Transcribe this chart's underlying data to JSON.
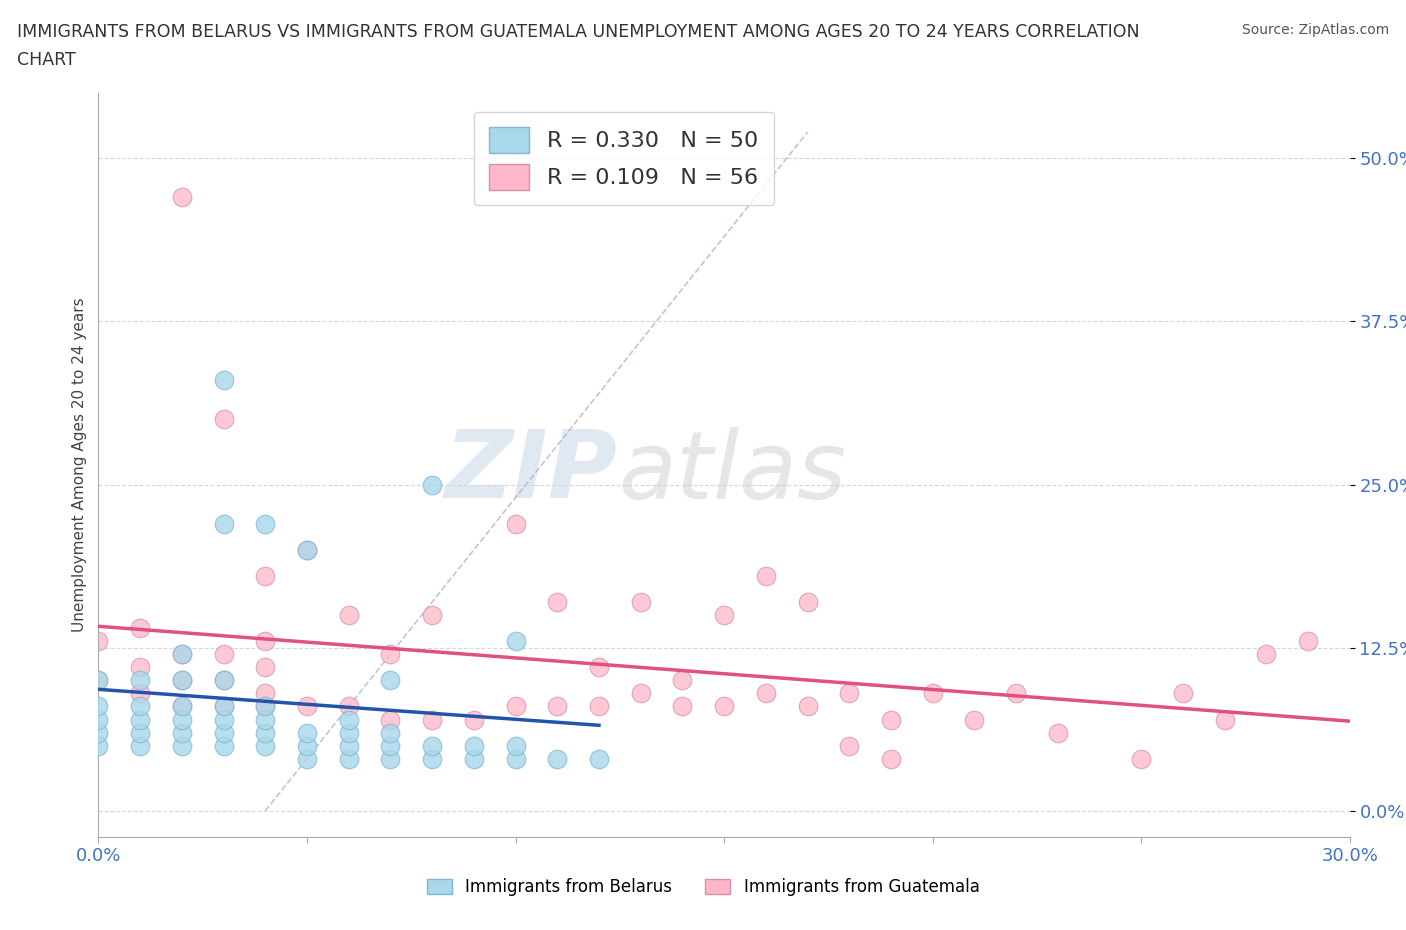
{
  "title_line1": "IMMIGRANTS FROM BELARUS VS IMMIGRANTS FROM GUATEMALA UNEMPLOYMENT AMONG AGES 20 TO 24 YEARS CORRELATION",
  "title_line2": "CHART",
  "source": "Source: ZipAtlas.com",
  "ylabel": "Unemployment Among Ages 20 to 24 years",
  "R_belarus": 0.33,
  "N_belarus": 50,
  "R_guatemala": 0.109,
  "N_guatemala": 56,
  "color_belarus": "#a8d8ea",
  "color_guatemala": "#ffb6c8",
  "trendline_color_belarus": "#2255aa",
  "trendline_color_guatemala": "#e05080",
  "background_color": "#ffffff",
  "watermark_zip": "ZIP",
  "watermark_atlas": "atlas",
  "xlim": [
    0.0,
    0.3
  ],
  "ylim": [
    -0.02,
    0.55
  ],
  "ytick_vals": [
    0.0,
    0.125,
    0.25,
    0.375,
    0.5
  ],
  "ytick_labels": [
    "0.0%",
    "12.5%",
    "25.0%",
    "37.5%",
    "50.0%"
  ],
  "xtick_vals": [
    0.0,
    0.05,
    0.1,
    0.15,
    0.2,
    0.25,
    0.3
  ],
  "xtick_labels": [
    "0.0%",
    "",
    "",
    "",
    "",
    "",
    "30.0%"
  ],
  "belarus_x": [
    0.0,
    0.0,
    0.0,
    0.0,
    0.0,
    0.01,
    0.01,
    0.01,
    0.01,
    0.01,
    0.02,
    0.02,
    0.02,
    0.02,
    0.02,
    0.02,
    0.03,
    0.03,
    0.03,
    0.03,
    0.03,
    0.03,
    0.03,
    0.04,
    0.04,
    0.04,
    0.04,
    0.04,
    0.05,
    0.05,
    0.05,
    0.05,
    0.06,
    0.06,
    0.06,
    0.06,
    0.07,
    0.07,
    0.07,
    0.07,
    0.08,
    0.08,
    0.08,
    0.09,
    0.09,
    0.1,
    0.1,
    0.1,
    0.11,
    0.12
  ],
  "belarus_y": [
    0.05,
    0.06,
    0.07,
    0.08,
    0.1,
    0.05,
    0.06,
    0.07,
    0.08,
    0.1,
    0.05,
    0.06,
    0.07,
    0.08,
    0.1,
    0.12,
    0.05,
    0.06,
    0.07,
    0.08,
    0.1,
    0.22,
    0.33,
    0.05,
    0.06,
    0.07,
    0.08,
    0.22,
    0.04,
    0.05,
    0.06,
    0.2,
    0.04,
    0.05,
    0.06,
    0.07,
    0.04,
    0.05,
    0.06,
    0.1,
    0.04,
    0.05,
    0.25,
    0.04,
    0.05,
    0.04,
    0.05,
    0.13,
    0.04,
    0.04
  ],
  "guatemala_x": [
    0.0,
    0.0,
    0.01,
    0.01,
    0.01,
    0.02,
    0.02,
    0.02,
    0.02,
    0.03,
    0.03,
    0.03,
    0.03,
    0.04,
    0.04,
    0.04,
    0.04,
    0.04,
    0.05,
    0.05,
    0.06,
    0.06,
    0.07,
    0.07,
    0.08,
    0.08,
    0.09,
    0.1,
    0.1,
    0.11,
    0.11,
    0.12,
    0.12,
    0.13,
    0.13,
    0.14,
    0.14,
    0.15,
    0.15,
    0.16,
    0.16,
    0.17,
    0.17,
    0.18,
    0.18,
    0.19,
    0.19,
    0.2,
    0.21,
    0.22,
    0.23,
    0.25,
    0.26,
    0.27,
    0.28,
    0.29
  ],
  "guatemala_y": [
    0.1,
    0.13,
    0.09,
    0.11,
    0.14,
    0.08,
    0.1,
    0.12,
    0.47,
    0.08,
    0.1,
    0.12,
    0.3,
    0.08,
    0.09,
    0.11,
    0.13,
    0.18,
    0.08,
    0.2,
    0.08,
    0.15,
    0.07,
    0.12,
    0.07,
    0.15,
    0.07,
    0.08,
    0.22,
    0.08,
    0.16,
    0.08,
    0.11,
    0.09,
    0.16,
    0.08,
    0.1,
    0.08,
    0.15,
    0.09,
    0.18,
    0.08,
    0.16,
    0.09,
    0.05,
    0.07,
    0.04,
    0.09,
    0.07,
    0.09,
    0.06,
    0.04,
    0.09,
    0.07,
    0.12,
    0.13
  ]
}
